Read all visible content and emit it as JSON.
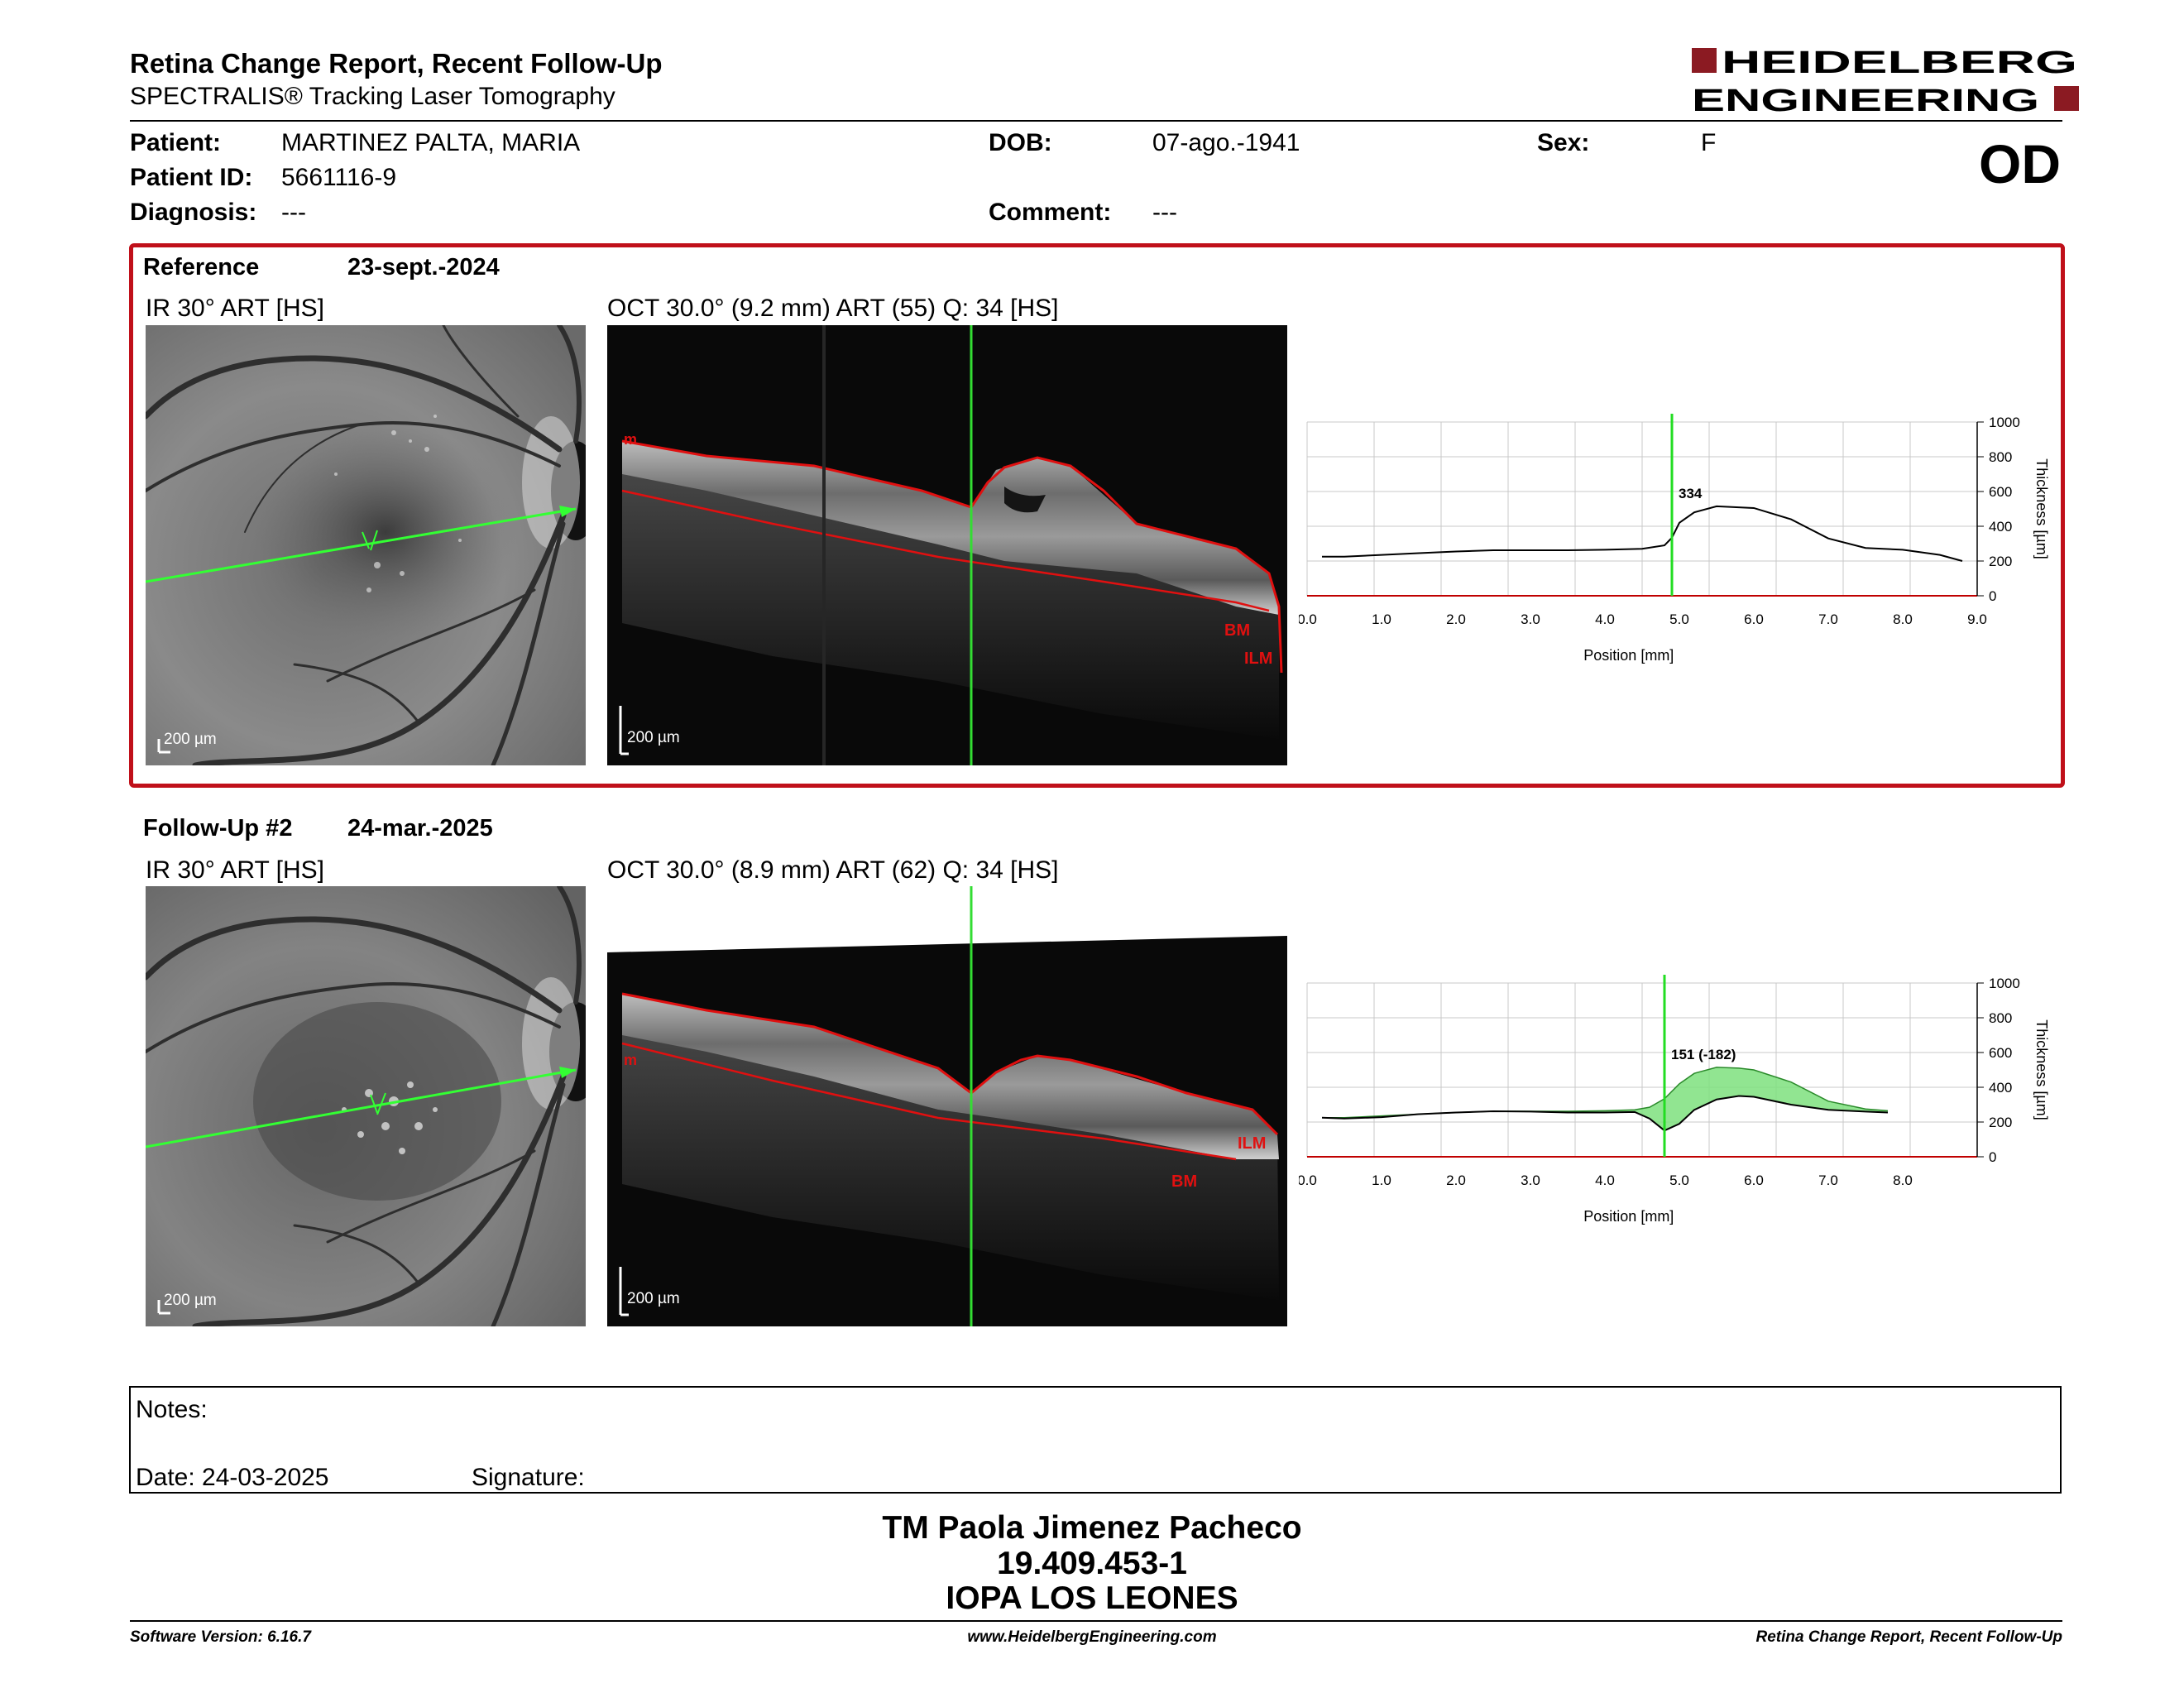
{
  "header": {
    "title": "Retina Change Report, Recent Follow-Up",
    "subtitle": "SPECTRALIS® Tracking Laser Tomography",
    "brand_line1": "HEIDELBERG",
    "brand_line2": "ENGINEERING",
    "brand_color": "#8b1a22"
  },
  "patient": {
    "patient_label": "Patient:",
    "patient_value": "MARTINEZ PALTA, MARIA",
    "id_label": "Patient ID:",
    "id_value": "5661116-9",
    "diagnosis_label": "Diagnosis:",
    "diagnosis_value": "---",
    "dob_label": "DOB:",
    "dob_value": "07-ago.-1941",
    "comment_label": "Comment:",
    "comment_value": "---",
    "sex_label": "Sex:",
    "sex_value": "F",
    "eye": "OD"
  },
  "reference": {
    "label": "Reference",
    "date": "23-sept.-2024",
    "ir_label": "IR 30° ART [HS]",
    "oct_label": "OCT 30.0° (9.2 mm) ART (55) Q: 34 [HS]",
    "ir_scale": "200 µm",
    "oct_scale": "200 µm",
    "layer_labels": [
      "BM",
      "ILM"
    ],
    "frame_color": "#c0101a"
  },
  "followup": {
    "label": "Follow-Up #2",
    "date": "24-mar.-2025",
    "ir_label": "IR 30° ART [HS]",
    "oct_label": "OCT 30.0° (8.9 mm) ART (62) Q: 34 [HS]",
    "ir_scale": "200 µm",
    "oct_scale": "200 µm",
    "layer_labels": [
      "ILM",
      "BM"
    ]
  },
  "notes": {
    "notes_label": "Notes:",
    "date_label": "Date: 24-03-2025",
    "signature_label": "Signature:"
  },
  "signature_block": {
    "name": "TM Paola Jimenez Pacheco",
    "rut": "19.409.453-1",
    "institution": "IOPA LOS LEONES"
  },
  "footer": {
    "software": "Software Version: 6.16.7",
    "website": "www.HeidelbergEngineering.com",
    "report_name": "Retina Change Report, Recent Follow-Up"
  },
  "chart_data": [
    {
      "type": "line",
      "xlabel": "Position [mm]",
      "ylabel": "Thickness [µm]",
      "xlim": [
        0,
        9
      ],
      "ylim": [
        0,
        1000
      ],
      "x_ticks": [
        "0.0",
        "1.0",
        "2.0",
        "3.0",
        "4.0",
        "5.0",
        "6.0",
        "7.0",
        "8.0",
        "9.0"
      ],
      "y_ticks": [
        "0",
        "200",
        "400",
        "600",
        "800",
        "1000"
      ],
      "grid": true,
      "cursor_x": 4.9,
      "annotation": "334",
      "series": [
        {
          "x": [
            0.2,
            0.5,
            1.0,
            1.5,
            2.0,
            2.5,
            3.0,
            3.5,
            4.0,
            4.5,
            4.8,
            4.9,
            5.0,
            5.2,
            5.5,
            6.0,
            6.5,
            7.0,
            7.5,
            8.0,
            8.5,
            8.8
          ],
          "y": [
            225,
            225,
            235,
            245,
            255,
            262,
            262,
            262,
            265,
            270,
            290,
            334,
            420,
            480,
            515,
            505,
            440,
            330,
            275,
            265,
            235,
            200
          ]
        }
      ]
    },
    {
      "type": "area",
      "xlabel": "Position [mm]",
      "ylabel": "Thickness [µm]",
      "xlim": [
        0,
        9
      ],
      "ylim": [
        0,
        1000
      ],
      "x_ticks": [
        "0.0",
        "1.0",
        "2.0",
        "3.0",
        "4.0",
        "5.0",
        "6.0",
        "7.0",
        "8.0"
      ],
      "y_ticks": [
        "0",
        "200",
        "400",
        "600",
        "800",
        "1000"
      ],
      "grid": true,
      "cursor_x": 4.8,
      "annotation": "151 (-182)",
      "fill_color": "#7ee07e",
      "series": [
        {
          "x": [
            0.2,
            0.5,
            1.0,
            1.5,
            2.0,
            2.5,
            3.0,
            3.5,
            4.0,
            4.4,
            4.6,
            4.8,
            5.0,
            5.2,
            5.5,
            5.8,
            6.0,
            6.5,
            7.0,
            7.5,
            7.8
          ],
          "y": [
            225,
            220,
            228,
            245,
            255,
            262,
            260,
            255,
            255,
            258,
            220,
            151,
            190,
            270,
            330,
            350,
            345,
            300,
            270,
            260,
            255
          ]
        },
        {
          "x": [
            0.2,
            0.5,
            1.0,
            1.5,
            2.0,
            2.5,
            3.0,
            3.5,
            4.0,
            4.4,
            4.6,
            4.8,
            5.0,
            5.2,
            5.5,
            5.8,
            6.0,
            6.5,
            7.0,
            7.5,
            7.8
          ],
          "y": [
            225,
            225,
            235,
            245,
            255,
            262,
            262,
            262,
            265,
            270,
            285,
            334,
            420,
            480,
            515,
            510,
            500,
            430,
            320,
            275,
            265
          ]
        }
      ]
    }
  ]
}
